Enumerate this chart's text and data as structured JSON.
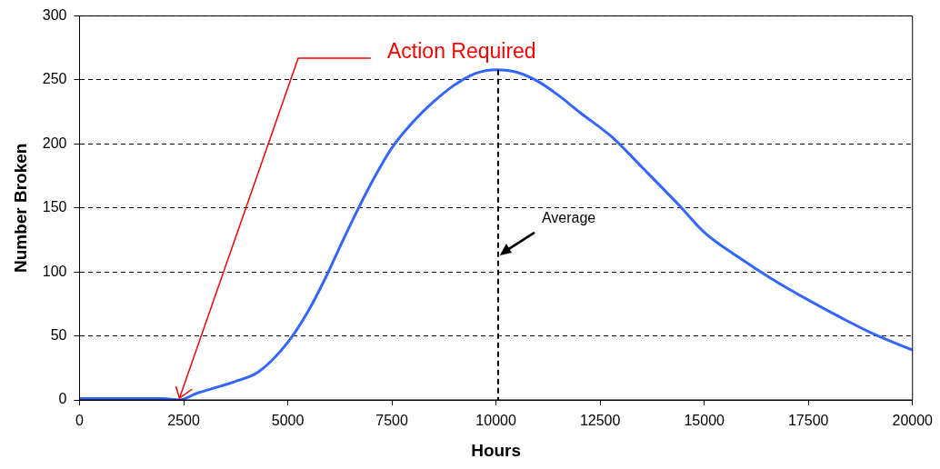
{
  "chart_data": {
    "type": "line",
    "xlabel": "Hours",
    "ylabel": "Number Broken",
    "series": [
      {
        "color": "#3366ff",
        "x": [
          0,
          1000,
          2000,
          2400,
          2800,
          3200,
          3700,
          4300,
          5000,
          5500,
          5900,
          6300,
          6700,
          7100,
          7500,
          8000,
          8500,
          9000,
          9500,
          10000,
          10500,
          11000,
          11500,
          12000,
          12800,
          13500,
          14400,
          15000,
          15800,
          16600,
          17500,
          18300,
          19100,
          20000
        ],
        "values": [
          1,
          1,
          1,
          0,
          5,
          9,
          14,
          22,
          45,
          70,
          95,
          123,
          150,
          175,
          197,
          217,
          233,
          246,
          255,
          258,
          256,
          249,
          238,
          225,
          205,
          182,
          152,
          131,
          112,
          95,
          78,
          64,
          51,
          39
        ]
      }
    ],
    "xlim": [
      0,
      20000
    ],
    "xticks": [
      0,
      2500,
      5000,
      7500,
      10000,
      12500,
      15000,
      17500,
      20000
    ],
    "ylim": [
      0,
      300
    ],
    "yticks": [
      0,
      50,
      100,
      150,
      200,
      250,
      300
    ],
    "grid": "y",
    "legend": false,
    "marker": "none",
    "line_style": "solid",
    "ref_lines": [
      {
        "axis": "x",
        "value": 10050,
        "label": "Average",
        "color": "#000000",
        "line_style": "dashed"
      }
    ],
    "annotations": [
      {
        "text": "Action Required",
        "x": 2400,
        "y": 0
      }
    ]
  }
}
